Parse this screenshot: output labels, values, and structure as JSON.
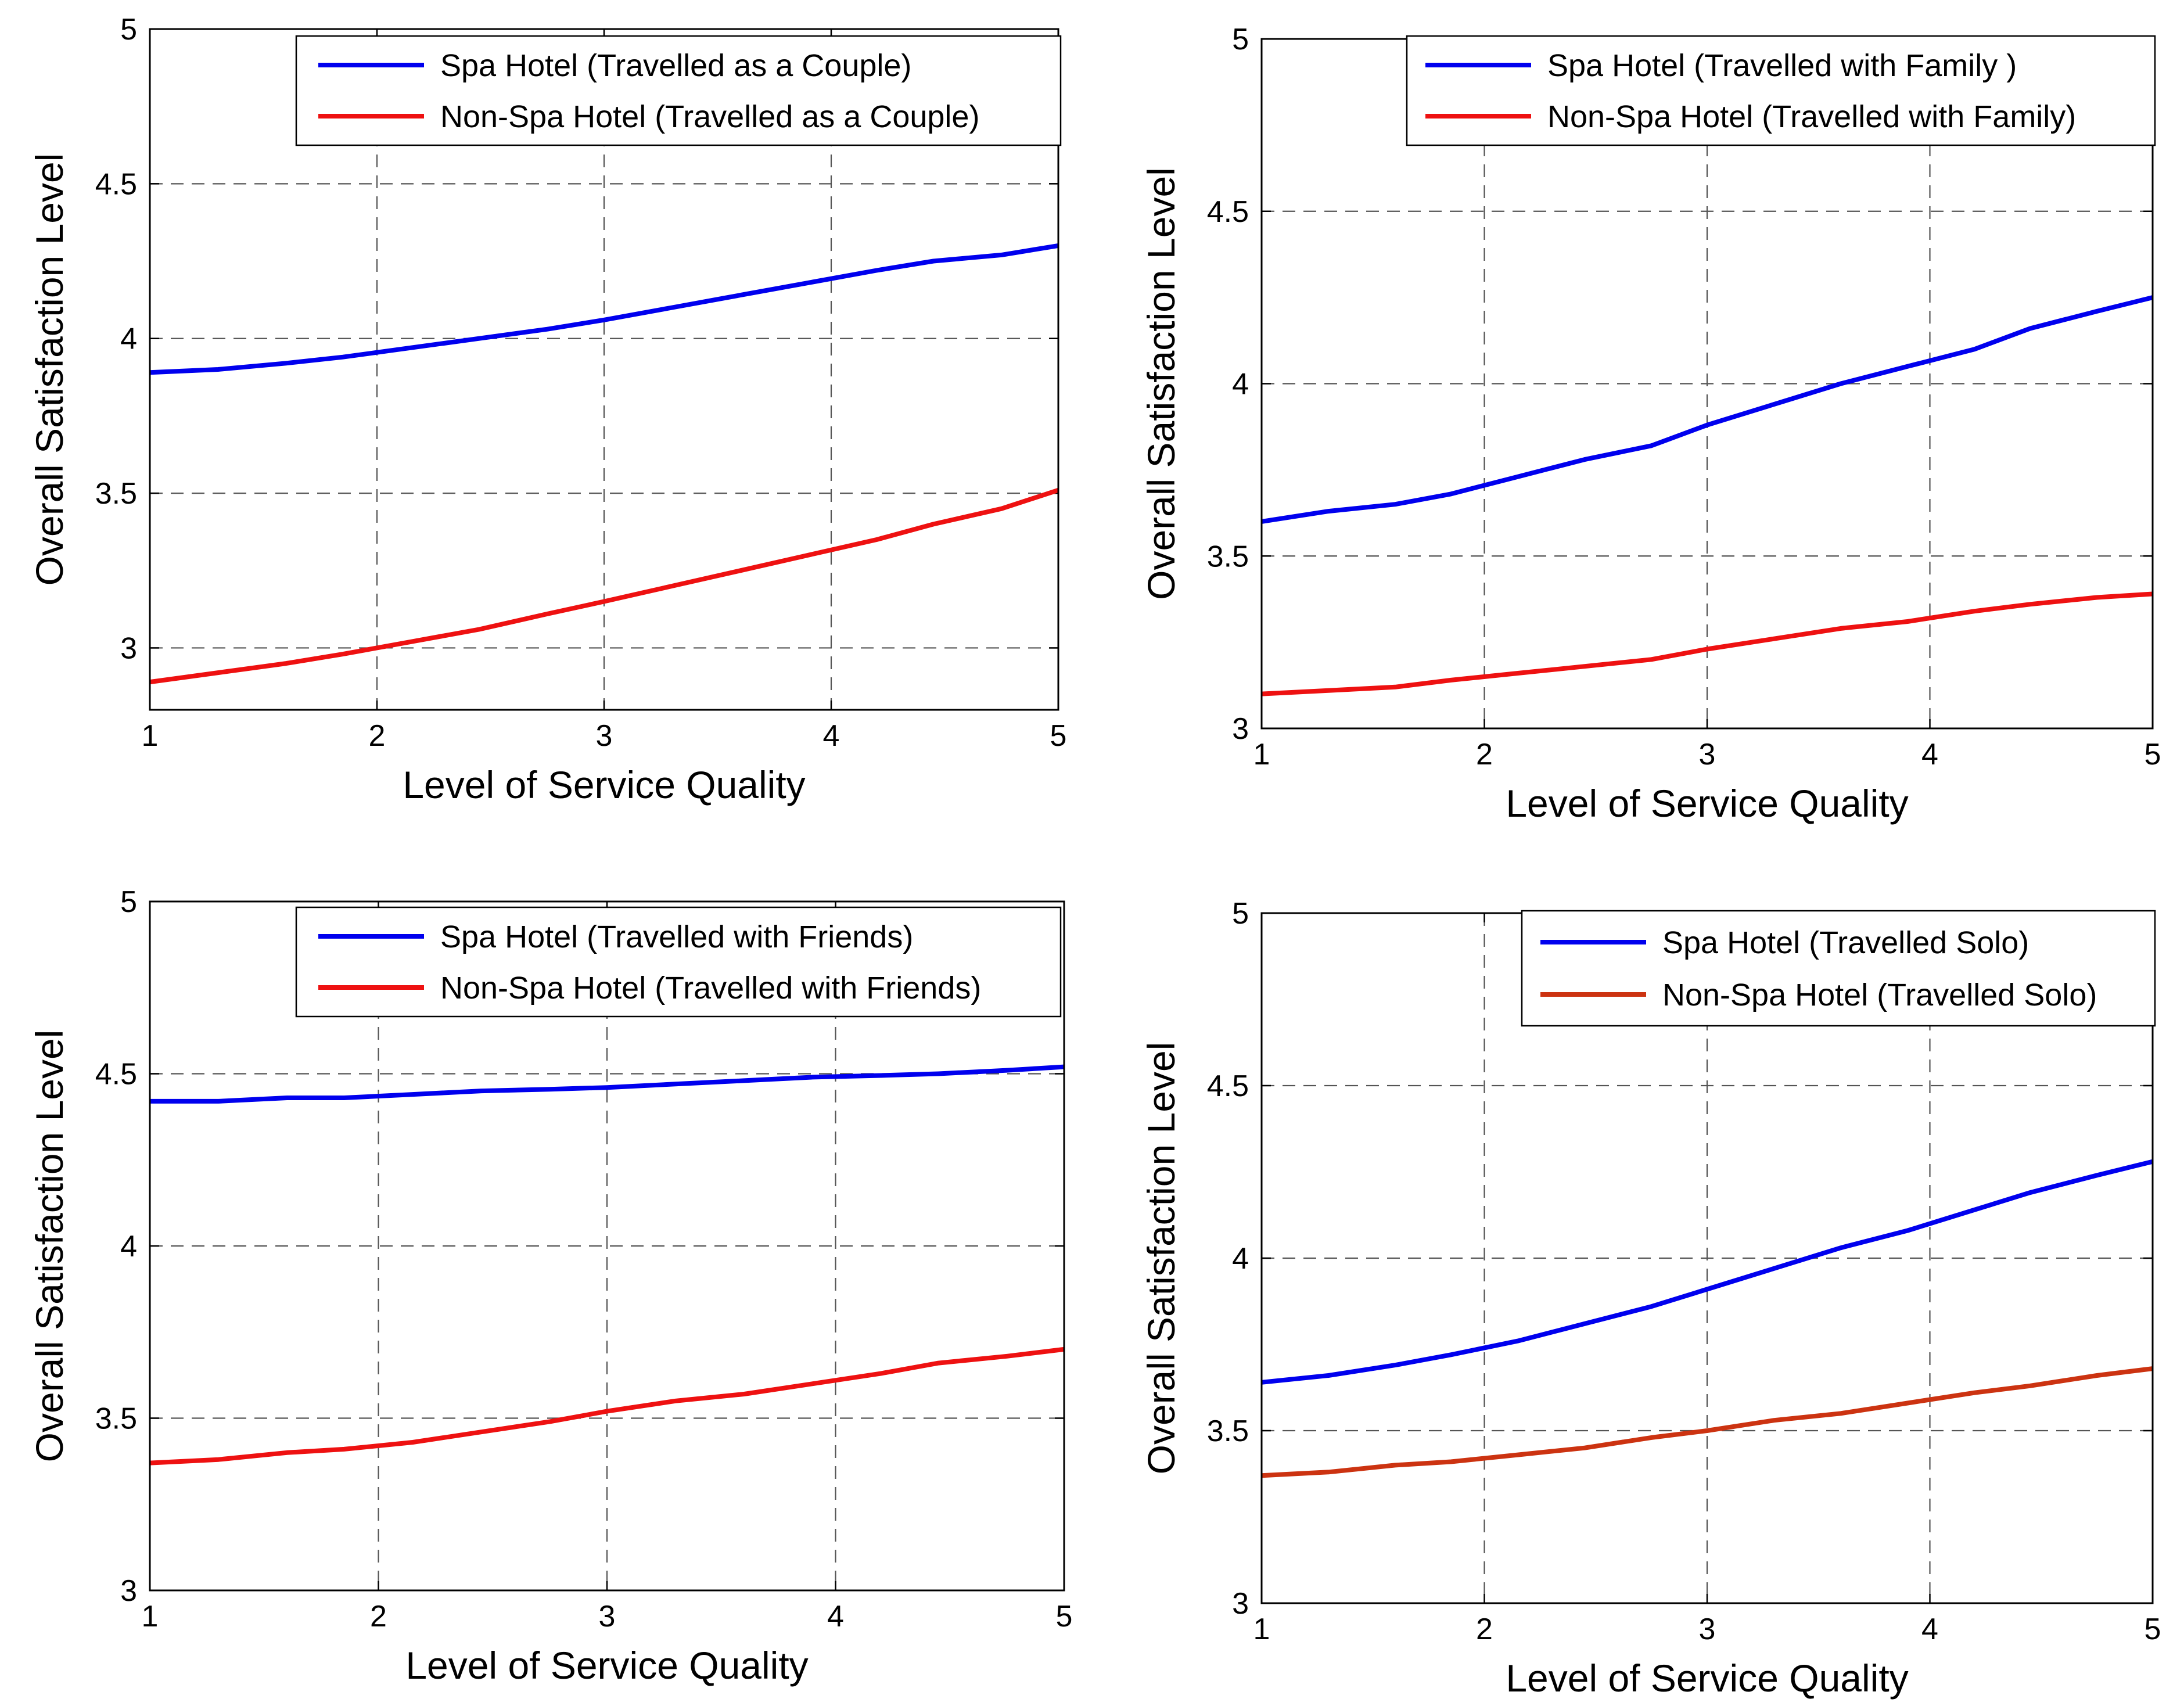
{
  "chart_data": [
    {
      "type": "line",
      "title": "",
      "xlabel": "Level of Service Quality",
      "ylabel": "Overall Satisfaction Level",
      "xlim": [
        1,
        5
      ],
      "ylim": [
        2.8,
        5
      ],
      "xticks": [
        1,
        2,
        3,
        4,
        5
      ],
      "xtick_labels": [
        "1",
        "2",
        "3",
        "4",
        "5"
      ],
      "yticks": [
        3,
        3.5,
        4,
        4.5,
        5
      ],
      "ytick_labels": [
        "3",
        "3.5",
        "4",
        "4.5",
        "5"
      ],
      "grid": true,
      "legend_position": "top-right",
      "x": [
        1,
        1.3,
        1.6,
        1.85,
        2.15,
        2.45,
        2.75,
        3,
        3.3,
        3.6,
        3.9,
        4.2,
        4.45,
        4.75,
        5
      ],
      "series": [
        {
          "name": "Spa Hotel (Travelled as a Couple)",
          "color": "#0000ee",
          "values": [
            3.89,
            3.9,
            3.92,
            3.94,
            3.97,
            4.0,
            4.03,
            4.06,
            4.1,
            4.14,
            4.18,
            4.22,
            4.25,
            4.27,
            4.3
          ]
        },
        {
          "name": "Non-Spa Hotel (Travelled as a Couple)",
          "color": "#ee1111",
          "values": [
            2.89,
            2.92,
            2.95,
            2.98,
            3.02,
            3.06,
            3.11,
            3.15,
            3.2,
            3.25,
            3.3,
            3.35,
            3.4,
            3.45,
            3.51
          ]
        }
      ]
    },
    {
      "type": "line",
      "title": "",
      "xlabel": "Level of Service Quality",
      "ylabel": "Overall Satisfaction Level",
      "xlim": [
        1,
        5
      ],
      "ylim": [
        3,
        5
      ],
      "xticks": [
        1,
        2,
        3,
        4,
        5
      ],
      "xtick_labels": [
        "1",
        "2",
        "3",
        "4",
        "5"
      ],
      "yticks": [
        3,
        3.5,
        4,
        4.5,
        5
      ],
      "ytick_labels": [
        "3",
        "3.5",
        "4",
        "4.5",
        "5"
      ],
      "grid": true,
      "legend_position": "top-right",
      "x": [
        1,
        1.3,
        1.6,
        1.85,
        2.15,
        2.45,
        2.75,
        3,
        3.3,
        3.6,
        3.9,
        4.2,
        4.45,
        4.75,
        5
      ],
      "series": [
        {
          "name": "Spa Hotel (Travelled with Family )",
          "color": "#0000ee",
          "values": [
            3.6,
            3.63,
            3.65,
            3.68,
            3.73,
            3.78,
            3.82,
            3.88,
            3.94,
            4.0,
            4.05,
            4.1,
            4.16,
            4.21,
            4.25
          ]
        },
        {
          "name": "Non-Spa Hotel (Travelled with Family)",
          "color": "#ee1111",
          "values": [
            3.1,
            3.11,
            3.12,
            3.14,
            3.16,
            3.18,
            3.2,
            3.23,
            3.26,
            3.29,
            3.31,
            3.34,
            3.36,
            3.38,
            3.39
          ]
        }
      ]
    },
    {
      "type": "line",
      "title": "",
      "xlabel": "Level of Service Quality",
      "ylabel": "Overall Satisfaction Level",
      "xlim": [
        1,
        5
      ],
      "ylim": [
        3,
        5
      ],
      "xticks": [
        1,
        2,
        3,
        4,
        5
      ],
      "xtick_labels": [
        "1",
        "2",
        "3",
        "4",
        "5"
      ],
      "yticks": [
        3,
        3.5,
        4,
        4.5,
        5
      ],
      "ytick_labels": [
        "3",
        "3.5",
        "4",
        "4.5",
        "5"
      ],
      "grid": true,
      "legend_position": "top-right",
      "x": [
        1,
        1.3,
        1.6,
        1.85,
        2.15,
        2.45,
        2.75,
        3,
        3.3,
        3.6,
        3.9,
        4.2,
        4.45,
        4.75,
        5
      ],
      "series": [
        {
          "name": "Spa Hotel (Travelled with Friends)",
          "color": "#0000ee",
          "values": [
            4.42,
            4.42,
            4.43,
            4.43,
            4.44,
            4.45,
            4.455,
            4.46,
            4.47,
            4.48,
            4.49,
            4.495,
            4.5,
            4.51,
            4.52
          ]
        },
        {
          "name": "Non-Spa Hotel (Travelled with Friends)",
          "color": "#ee1111",
          "values": [
            3.37,
            3.38,
            3.4,
            3.41,
            3.43,
            3.46,
            3.49,
            3.52,
            3.55,
            3.57,
            3.6,
            3.63,
            3.66,
            3.68,
            3.7
          ]
        }
      ]
    },
    {
      "type": "line",
      "title": "",
      "xlabel": "Level of Service Quality",
      "ylabel": "Overall Satisfaction Level",
      "xlim": [
        1,
        5
      ],
      "ylim": [
        3,
        5
      ],
      "xticks": [
        1,
        2,
        3,
        4,
        5
      ],
      "xtick_labels": [
        "1",
        "2",
        "3",
        "4",
        "5"
      ],
      "yticks": [
        3,
        3.5,
        4,
        4.5,
        5
      ],
      "ytick_labels": [
        "3",
        "3.5",
        "4",
        "4.5",
        "5"
      ],
      "grid": true,
      "legend_position": "top-right",
      "x": [
        1,
        1.3,
        1.6,
        1.85,
        2.15,
        2.45,
        2.75,
        3,
        3.3,
        3.6,
        3.9,
        4.2,
        4.45,
        4.75,
        5
      ],
      "series": [
        {
          "name": "Spa Hotel (Travelled Solo)",
          "color": "#0000ee",
          "values": [
            3.64,
            3.66,
            3.69,
            3.72,
            3.76,
            3.81,
            3.86,
            3.91,
            3.97,
            4.03,
            4.08,
            4.14,
            4.19,
            4.24,
            4.28
          ]
        },
        {
          "name": "Non-Spa Hotel (Travelled Solo)",
          "color": "#cc3311",
          "values": [
            3.37,
            3.38,
            3.4,
            3.41,
            3.43,
            3.45,
            3.48,
            3.5,
            3.53,
            3.55,
            3.58,
            3.61,
            3.63,
            3.66,
            3.68
          ]
        }
      ]
    }
  ]
}
